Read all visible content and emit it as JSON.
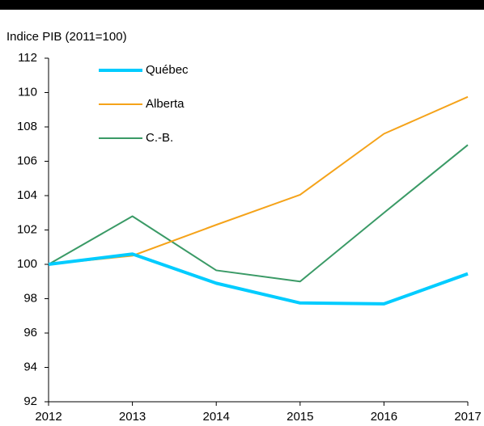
{
  "chart_data": {
    "type": "line",
    "y_label": "Indice PIB (2011=100)",
    "x": [
      2012,
      2013,
      2014,
      2015,
      2016,
      2017
    ],
    "xlim": [
      2012,
      2017
    ],
    "xticks": [
      2012,
      2013,
      2014,
      2015,
      2016,
      2017
    ],
    "ylim": [
      92,
      112
    ],
    "yticks": [
      92,
      94,
      96,
      98,
      100,
      102,
      104,
      106,
      108,
      110,
      112
    ],
    "grid": false,
    "legend": "upper left",
    "series": [
      {
        "name": "Québec",
        "color": "#00ccff",
        "width": 4,
        "values": [
          100,
          100.6,
          98.9,
          97.75,
          97.7,
          99.45
        ]
      },
      {
        "name": "Alberta",
        "color": "#f5a31a",
        "width": 2,
        "values": [
          100,
          100.5,
          102.3,
          104.05,
          107.6,
          109.75
        ]
      },
      {
        "name": "C.-B.",
        "color": "#3a9a66",
        "width": 2,
        "values": [
          100,
          102.8,
          99.65,
          99.0,
          103.0,
          106.95
        ]
      }
    ]
  }
}
